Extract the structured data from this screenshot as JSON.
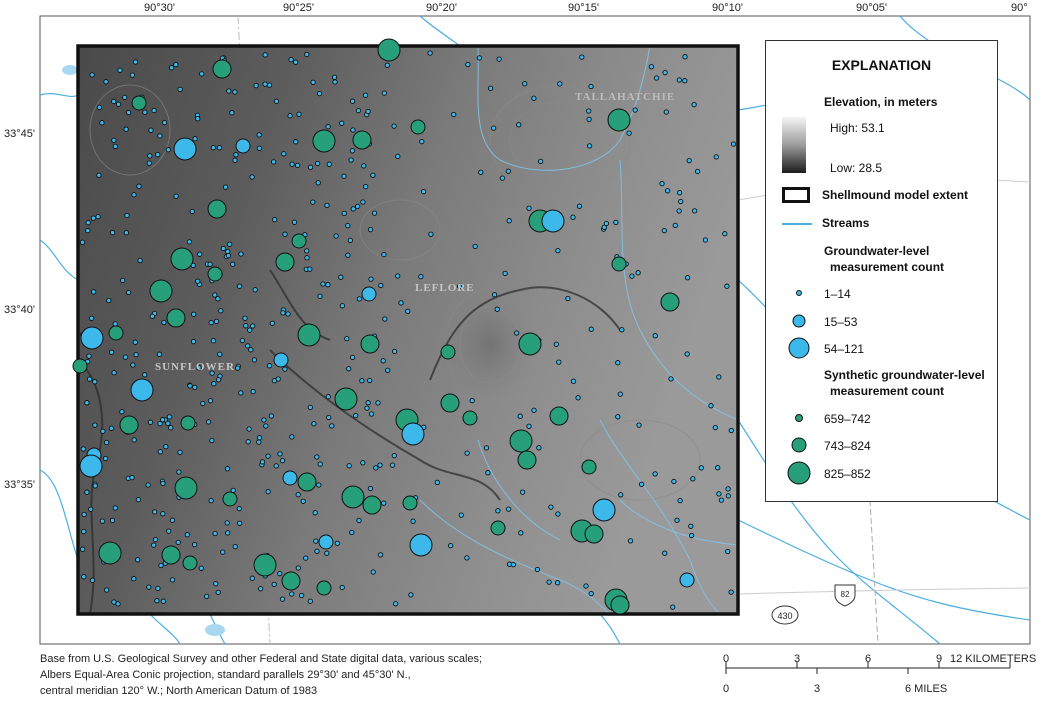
{
  "map": {
    "longitude_labels": [
      "90°30'",
      "90°25'",
      "90°20'",
      "90°15'",
      "90°10'",
      "90°05'",
      "90°"
    ],
    "latitude_labels": [
      "33°45'",
      "33°40'",
      "33°35'"
    ],
    "place_labels": [
      "TALLAHATCHIE",
      "LEFLORE",
      "SUNFLOWER"
    ],
    "shields": [
      "430",
      "82"
    ]
  },
  "legend": {
    "title": "EXPLANATION",
    "elevation_heading": "Elevation, in meters",
    "elevation_high": "High: 53.1",
    "elevation_low": "Low: 28.5",
    "extent_label": "Shellmound model extent",
    "streams_label": "Streams",
    "gw_heading_1": "Groundwater-level",
    "gw_heading_2": "measurement count",
    "gw_classes": [
      "1–14",
      "15–53",
      "54–121"
    ],
    "syn_heading_1": "Synthetic groundwater-level",
    "syn_heading_2": "measurement count",
    "syn_classes": [
      "659–742",
      "743–824",
      "825–852"
    ]
  },
  "colors": {
    "observed": "#3db8ea",
    "synthetic": "#27a07a",
    "stream": "#4aaee0"
  },
  "credit": [
    "Base from U.S. Geological Survey and other Federal and State digital data, various scales;",
    "Albers Equal-Area Conic projection, standard parallels 29°30' and 45°30' N.,",
    "central meridian 120° W.; North American Datum of 1983"
  ],
  "scale": {
    "km_ticks": [
      "0",
      "3",
      "6",
      "9",
      "12 KILOMETERS"
    ],
    "mile_ticks": [
      "0",
      "3",
      "6 MILES"
    ]
  }
}
